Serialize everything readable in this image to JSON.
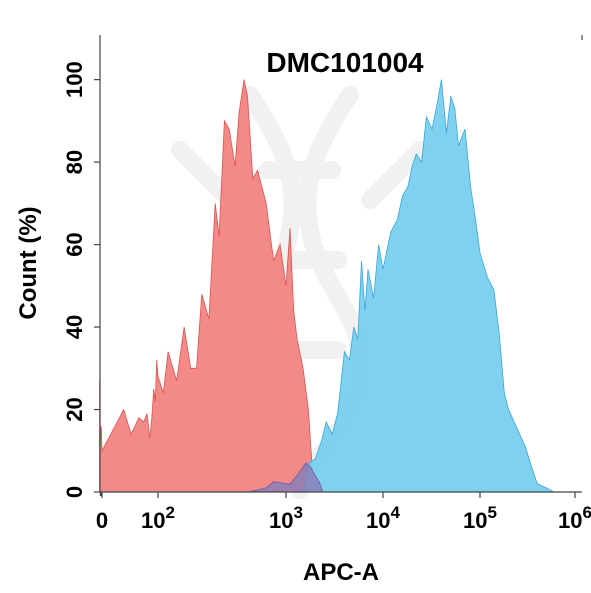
{
  "chart_data": {
    "type": "area",
    "title": "DMC101004",
    "xlabel": "APC-A",
    "ylabel": "Count  (%)",
    "x_scale": "biexponential",
    "xlim": [
      -30,
      1000000
    ],
    "ylim": [
      0,
      105
    ],
    "x_ticks": [
      {
        "value": 0,
        "label": "0"
      },
      {
        "value": 100,
        "label": "10",
        "sup": "2"
      },
      {
        "value": 1000,
        "label": "10",
        "sup": "3"
      },
      {
        "value": 10000,
        "label": "10",
        "sup": "4"
      },
      {
        "value": 100000,
        "label": "10",
        "sup": "5"
      },
      {
        "value": 1000000,
        "label": "10",
        "sup": "6"
      }
    ],
    "y_ticks": [
      0,
      20,
      40,
      60,
      80,
      100
    ],
    "series": [
      {
        "color": "#f2807e",
        "stroke": "#d9534f",
        "points": [
          [
            -30,
            0
          ],
          [
            -30,
            27
          ],
          [
            -20,
            12
          ],
          [
            -10,
            16
          ],
          [
            0,
            10
          ],
          [
            5,
            20
          ],
          [
            10,
            14
          ],
          [
            20,
            18
          ],
          [
            30,
            17
          ],
          [
            40,
            19
          ],
          [
            50,
            13
          ],
          [
            60,
            18
          ],
          [
            70,
            25
          ],
          [
            80,
            22
          ],
          [
            90,
            32
          ],
          [
            100,
            28
          ],
          [
            110,
            24
          ],
          [
            120,
            34
          ],
          [
            140,
            27
          ],
          [
            160,
            40
          ],
          [
            180,
            30
          ],
          [
            200,
            30
          ],
          [
            220,
            48
          ],
          [
            250,
            42
          ],
          [
            280,
            70
          ],
          [
            300,
            62
          ],
          [
            330,
            90
          ],
          [
            360,
            88
          ],
          [
            400,
            79
          ],
          [
            430,
            92
          ],
          [
            470,
            100
          ],
          [
            500,
            96
          ],
          [
            550,
            76
          ],
          [
            600,
            78
          ],
          [
            700,
            70
          ],
          [
            800,
            56
          ],
          [
            900,
            60
          ],
          [
            1000,
            50
          ],
          [
            1100,
            64
          ],
          [
            1200,
            44
          ],
          [
            1300,
            37
          ],
          [
            1500,
            30
          ],
          [
            1700,
            20
          ],
          [
            1900,
            3
          ],
          [
            2000,
            0
          ]
        ]
      },
      {
        "color": "#75cdee",
        "stroke": "#36a9d6",
        "points": [
          [
            1500,
            0
          ],
          [
            1700,
            7
          ],
          [
            2000,
            8
          ],
          [
            2300,
            12
          ],
          [
            2600,
            17
          ],
          [
            3000,
            14
          ],
          [
            3400,
            19
          ],
          [
            4000,
            34
          ],
          [
            4500,
            32
          ],
          [
            5000,
            40
          ],
          [
            5500,
            37
          ],
          [
            6000,
            56
          ],
          [
            6500,
            44
          ],
          [
            7000,
            54
          ],
          [
            8000,
            47
          ],
          [
            9000,
            60
          ],
          [
            10000,
            54
          ],
          [
            12000,
            63
          ],
          [
            14000,
            66
          ],
          [
            16000,
            72
          ],
          [
            18000,
            74
          ],
          [
            20000,
            79
          ],
          [
            22000,
            82
          ],
          [
            25000,
            80
          ],
          [
            28000,
            91
          ],
          [
            32000,
            88
          ],
          [
            36000,
            94
          ],
          [
            40000,
            100
          ],
          [
            45000,
            87
          ],
          [
            50000,
            96
          ],
          [
            55000,
            93
          ],
          [
            60000,
            84
          ],
          [
            70000,
            88
          ],
          [
            80000,
            74
          ],
          [
            90000,
            66
          ],
          [
            100000,
            58
          ],
          [
            120000,
            52
          ],
          [
            140000,
            49
          ],
          [
            160000,
            38
          ],
          [
            180000,
            24
          ],
          [
            200000,
            20
          ],
          [
            250000,
            15
          ],
          [
            300000,
            11
          ],
          [
            350000,
            6
          ],
          [
            400000,
            2
          ],
          [
            500000,
            1
          ],
          [
            600000,
            0
          ]
        ]
      },
      {
        "color": "#8a7fb8",
        "stroke": "#6b60a0",
        "points": [
          [
            500,
            0
          ],
          [
            700,
            1
          ],
          [
            800,
            2.5
          ],
          [
            1000,
            2
          ],
          [
            1100,
            2
          ],
          [
            1200,
            3
          ],
          [
            1400,
            5
          ],
          [
            1600,
            7
          ],
          [
            1800,
            6
          ],
          [
            2000,
            4
          ],
          [
            2200,
            2.5
          ],
          [
            2400,
            0
          ]
        ]
      }
    ]
  }
}
